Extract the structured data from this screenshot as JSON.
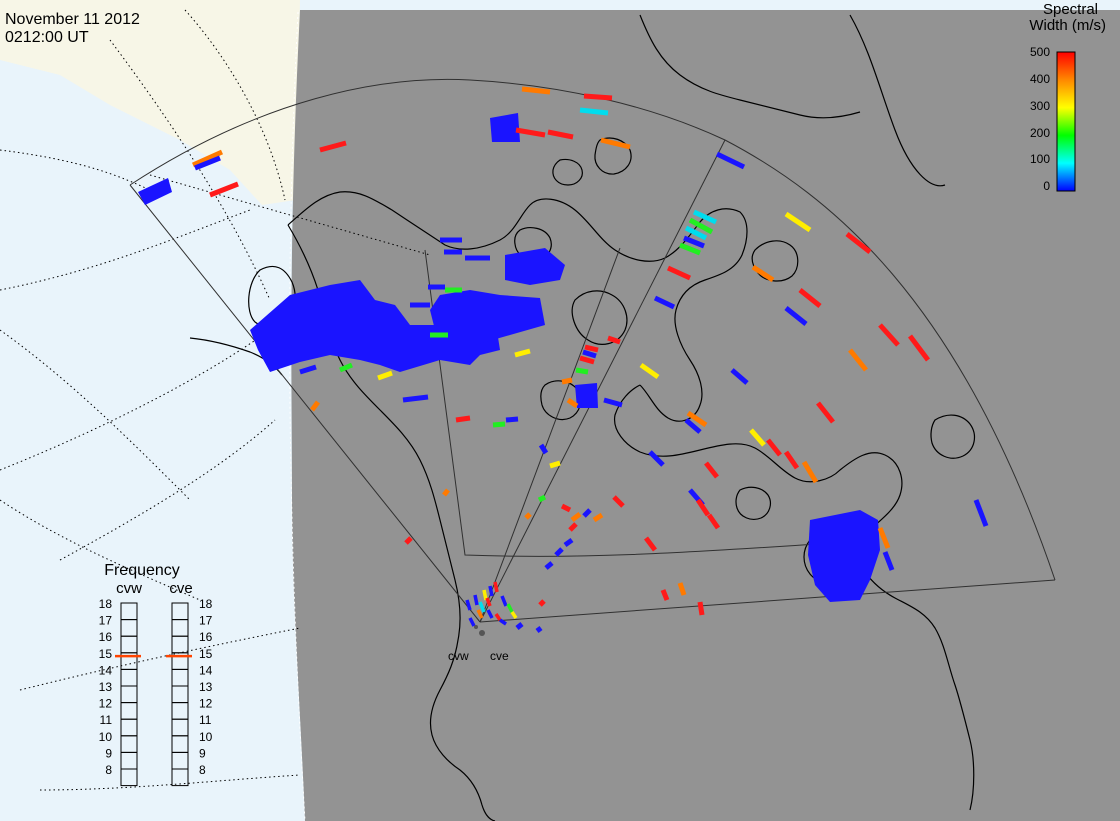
{
  "header": {
    "date": "November 11 2012",
    "time": "0212:00 UT"
  },
  "colorbar": {
    "title_line1": "Spectral",
    "title_line2": "Width (m/s)",
    "ticks": [
      "500",
      "400",
      "300",
      "200",
      "100",
      "0"
    ],
    "stops": [
      "#ff0000",
      "#ff8800",
      "#ffff00",
      "#00ff00",
      "#00ffff",
      "#0000ff"
    ]
  },
  "colors": {
    "night_side": "#939393",
    "day_ocean": "#e9f4fb",
    "day_land": "#f7f6e7",
    "coastline": "#000000",
    "fov_outline": "#303030",
    "frequency_marker": "#ff4400"
  },
  "radars": {
    "west": "cvw",
    "east": "cve"
  },
  "frequency_panel": {
    "title": "Frequency",
    "west_label": "cvw",
    "east_label": "cve",
    "levels": [
      "18",
      "17",
      "16",
      "15",
      "14",
      "13",
      "12",
      "11",
      "10",
      "9",
      "8"
    ],
    "west_value": 14.8,
    "east_value": 14.8
  }
}
